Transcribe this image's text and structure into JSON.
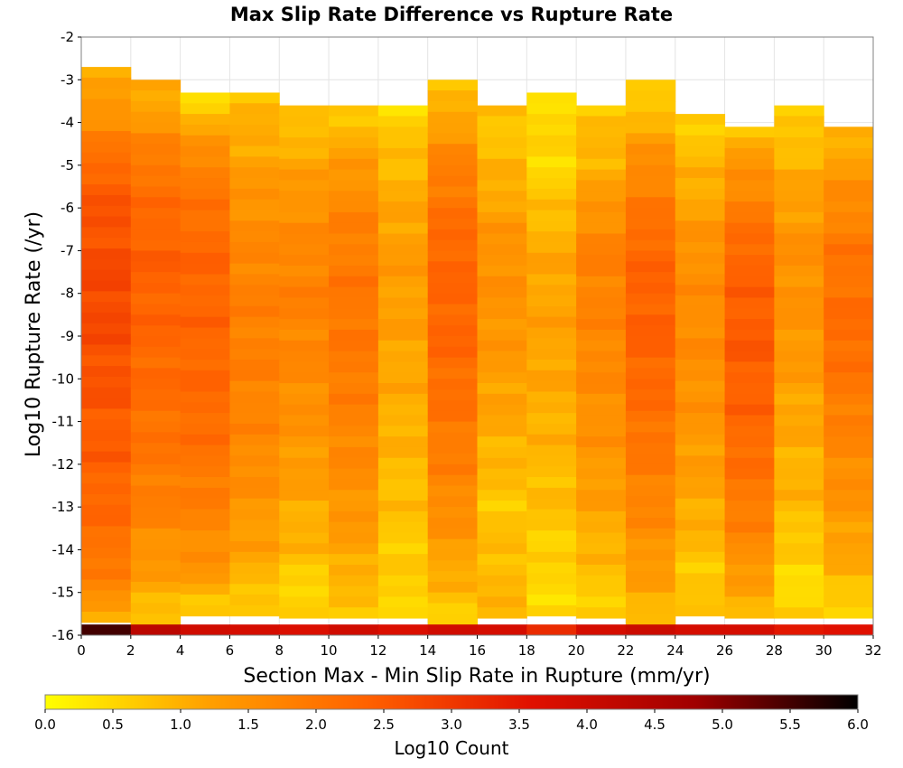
{
  "chart_data": {
    "type": "heatmap",
    "title": "Max Slip Rate Difference vs Rupture Rate",
    "xlabel": "Section Max - Min Slip Rate in Rupture (mm/yr)",
    "ylabel": "Log10 Rupture Rate (/yr)",
    "xlim": [
      0,
      32
    ],
    "ylim": [
      -16,
      -2
    ],
    "x_ticks": [
      "0",
      "2",
      "4",
      "6",
      "8",
      "10",
      "12",
      "14",
      "16",
      "18",
      "20",
      "22",
      "24",
      "26",
      "28",
      "30",
      "32"
    ],
    "y_ticks": [
      "-2",
      "-3",
      "-4",
      "-5",
      "-6",
      "-7",
      "-8",
      "-9",
      "-10",
      "-11",
      "-12",
      "-13",
      "-14",
      "-15",
      "-16"
    ],
    "x_bin_width": 2,
    "y_bin_height": 0.25,
    "colorbar": {
      "label": "Log10 Count",
      "range": [
        0,
        6
      ],
      "ticks": [
        "0.0",
        "0.5",
        "1.0",
        "1.5",
        "2.0",
        "2.5",
        "3.0",
        "3.5",
        "4.0",
        "4.5",
        "5.0",
        "5.5",
        "6.0"
      ],
      "colors": [
        "#ffff00",
        "#ffa000",
        "#ff6000",
        "#e01000",
        "#a00000",
        "#000000"
      ]
    },
    "grid": true,
    "columns": [
      {
        "x": [
          0,
          2
        ],
        "top": -2.7,
        "profile": [
          [
            -2.7,
            0.9
          ],
          [
            -4,
            1.6
          ],
          [
            -5.5,
            2.5
          ],
          [
            -8,
            2.8
          ],
          [
            -10,
            2.6
          ],
          [
            -12,
            2.4
          ],
          [
            -14,
            2.1
          ],
          [
            -15.2,
            1.5
          ],
          [
            -15.7,
            1.0
          ]
        ],
        "bottom_value": 5.5
      },
      {
        "x": [
          2,
          4
        ],
        "top": -3.0,
        "profile": [
          [
            -3.0,
            0.9
          ],
          [
            -4,
            1.4
          ],
          [
            -5,
            2.0
          ],
          [
            -7,
            2.4
          ],
          [
            -9,
            2.3
          ],
          [
            -11,
            2.1
          ],
          [
            -13,
            1.8
          ],
          [
            -14.5,
            1.3
          ],
          [
            -15.5,
            0.8
          ]
        ],
        "bottom_value": 4.3
      },
      {
        "x": [
          4,
          6
        ],
        "top": -3.3,
        "profile": [
          [
            -3.3,
            0.4
          ],
          [
            -4,
            1.0
          ],
          [
            -5,
            1.8
          ],
          [
            -7,
            2.3
          ],
          [
            -9,
            2.3
          ],
          [
            -11,
            2.2
          ],
          [
            -13,
            1.8
          ],
          [
            -14.5,
            1.4
          ],
          [
            -15.5,
            0.6
          ]
        ],
        "bottom_value": 3.9
      },
      {
        "x": [
          6,
          8
        ],
        "top": -3.3,
        "profile": [
          [
            -3.3,
            0.8
          ],
          [
            -4.5,
            1.1
          ],
          [
            -6,
            1.5
          ],
          [
            -8,
            1.8
          ],
          [
            -10,
            1.8
          ],
          [
            -12,
            1.6
          ],
          [
            -14,
            1.2
          ],
          [
            -15,
            0.8
          ],
          [
            -15.5,
            0.5
          ]
        ],
        "bottom_value": 3.8
      },
      {
        "x": [
          8,
          10
        ],
        "top": -3.6,
        "profile": [
          [
            -3.6,
            0.6
          ],
          [
            -4.5,
            1.0
          ],
          [
            -6,
            1.5
          ],
          [
            -8,
            1.8
          ],
          [
            -10,
            1.6
          ],
          [
            -12,
            1.3
          ],
          [
            -14,
            0.9
          ],
          [
            -15,
            0.5
          ]
        ],
        "bottom_value": 3.7
      },
      {
        "x": [
          10,
          12
        ],
        "top": -3.6,
        "profile": [
          [
            -3.6,
            0.6
          ],
          [
            -4.5,
            1.1
          ],
          [
            -6,
            1.7
          ],
          [
            -8,
            2.0
          ],
          [
            -10,
            1.9
          ],
          [
            -12,
            1.6
          ],
          [
            -14,
            1.2
          ],
          [
            -15,
            0.8
          ]
        ],
        "bottom_value": 3.9
      },
      {
        "x": [
          12,
          14
        ],
        "top": -3.6,
        "profile": [
          [
            -3.6,
            0.5
          ],
          [
            -5,
            0.9
          ],
          [
            -7,
            1.3
          ],
          [
            -9,
            1.2
          ],
          [
            -11,
            1.0
          ],
          [
            -13,
            0.8
          ],
          [
            -14.5,
            0.6
          ]
        ],
        "bottom_value": 3.7
      },
      {
        "x": [
          14,
          16
        ],
        "top": -3.0,
        "profile": [
          [
            -3.0,
            0.6
          ],
          [
            -4,
            1.2
          ],
          [
            -5,
            1.8
          ],
          [
            -7,
            2.3
          ],
          [
            -9,
            2.3
          ],
          [
            -11,
            2.0
          ],
          [
            -13,
            1.6
          ],
          [
            -14.5,
            1.1
          ],
          [
            -15.5,
            0.6
          ]
        ],
        "bottom_value": 3.9
      },
      {
        "x": [
          16,
          18
        ],
        "top": -3.6,
        "profile": [
          [
            -3.6,
            0.7
          ],
          [
            -5,
            0.9
          ],
          [
            -7,
            1.5
          ],
          [
            -9,
            1.4
          ],
          [
            -11,
            1.1
          ],
          [
            -13,
            0.7
          ],
          [
            -14.5,
            0.9
          ]
        ],
        "bottom_value": 3.8
      },
      {
        "x": [
          18,
          20
        ],
        "top": -3.3,
        "profile": [
          [
            -3.3,
            0.5
          ],
          [
            -5,
            0.5
          ],
          [
            -7,
            1.1
          ],
          [
            -9,
            1.2
          ],
          [
            -11,
            1.0
          ],
          [
            -13,
            0.8
          ],
          [
            -14.5,
            0.5
          ]
        ],
        "bottom_value": 3.2
      },
      {
        "x": [
          20,
          22
        ],
        "top": -3.6,
        "profile": [
          [
            -3.6,
            0.7
          ],
          [
            -5,
            1.0
          ],
          [
            -7,
            1.8
          ],
          [
            -9,
            1.7
          ],
          [
            -11,
            1.5
          ],
          [
            -13,
            1.2
          ],
          [
            -14.5,
            0.8
          ],
          [
            -15.5,
            0.6
          ]
        ],
        "bottom_value": 3.8
      },
      {
        "x": [
          22,
          24
        ],
        "top": -3.0,
        "profile": [
          [
            -3.0,
            0.4
          ],
          [
            -4,
            1.0
          ],
          [
            -5,
            1.6
          ],
          [
            -7,
            2.3
          ],
          [
            -9,
            2.4
          ],
          [
            -11,
            2.1
          ],
          [
            -13,
            1.7
          ],
          [
            -14.5,
            1.3
          ],
          [
            -15.5,
            0.9
          ]
        ],
        "bottom_value": 4.0
      },
      {
        "x": [
          24,
          26
        ],
        "top": -3.8,
        "profile": [
          [
            -3.8,
            0.6
          ],
          [
            -5,
            0.9
          ],
          [
            -7,
            1.5
          ],
          [
            -9,
            1.6
          ],
          [
            -11,
            1.4
          ],
          [
            -13,
            1.1
          ],
          [
            -14.5,
            0.7
          ]
        ],
        "bottom_value": 3.8
      },
      {
        "x": [
          26,
          28
        ],
        "top": -4.1,
        "profile": [
          [
            -4.1,
            0.8
          ],
          [
            -5,
            1.4
          ],
          [
            -7,
            2.3
          ],
          [
            -9,
            2.5
          ],
          [
            -11,
            2.3
          ],
          [
            -13,
            1.9
          ],
          [
            -14.5,
            1.4
          ],
          [
            -15.5,
            0.8
          ]
        ],
        "bottom_value": 3.8
      },
      {
        "x": [
          28,
          30
        ],
        "top": -3.6,
        "profile": [
          [
            -3.6,
            0.5
          ],
          [
            -5,
            1.0
          ],
          [
            -7,
            1.5
          ],
          [
            -9,
            1.4
          ],
          [
            -11,
            1.1
          ],
          [
            -13,
            0.9
          ],
          [
            -14.5,
            0.5
          ]
        ],
        "bottom_value": 3.5
      },
      {
        "x": [
          30,
          32
        ],
        "top": -4.1,
        "profile": [
          [
            -4.1,
            0.8
          ],
          [
            -5,
            1.3
          ],
          [
            -7,
            2.0
          ],
          [
            -9,
            2.2
          ],
          [
            -11,
            1.8
          ],
          [
            -13,
            1.4
          ],
          [
            -14.5,
            1.0
          ],
          [
            -15.5,
            0.5
          ]
        ],
        "bottom_value": 3.6
      }
    ]
  }
}
